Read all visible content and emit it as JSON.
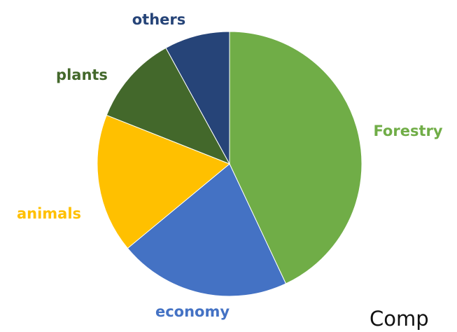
{
  "chart_data": {
    "type": "pie",
    "title": "",
    "start_angle_deg": 0,
    "direction": "clockwise",
    "slices": [
      {
        "label": "Forestry",
        "value": 43,
        "color": "#70ad47",
        "label_color": "#70ad47"
      },
      {
        "label": "economy",
        "value": 21,
        "color": "#4472c4",
        "label_color": "#4472c4"
      },
      {
        "label": "animals",
        "value": 17,
        "color": "#ffc000",
        "label_color": "#ffc000"
      },
      {
        "label": "plants",
        "value": 11,
        "color": "#43682b",
        "label_color": "#43682b"
      },
      {
        "label": "others",
        "value": 8,
        "color": "#264478",
        "label_color": "#264478"
      }
    ]
  },
  "footer_text": "Comp"
}
